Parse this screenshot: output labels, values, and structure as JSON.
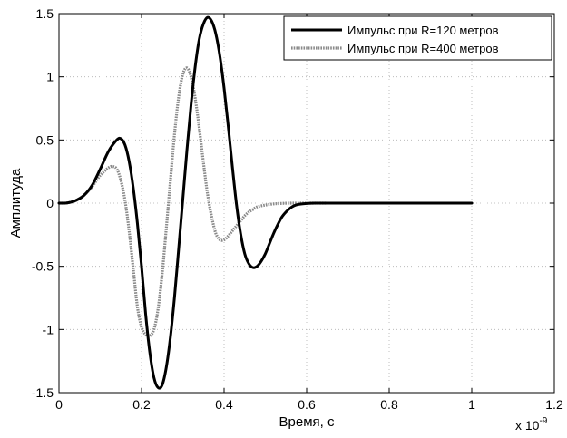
{
  "chart_data": {
    "type": "line",
    "title": "",
    "xlabel": "Время, с",
    "ylabel": "Амплитуда",
    "x_exponent_label": "x 10",
    "x_exponent_power": "-9",
    "xlim": [
      0,
      1.2
    ],
    "ylim": [
      -1.5,
      1.5
    ],
    "xticks": [
      0,
      0.2,
      0.4,
      0.6,
      0.8,
      1,
      1.2
    ],
    "xtick_labels": [
      "0",
      "0.2",
      "0.4",
      "0.6",
      "0.8",
      "1",
      "1.2"
    ],
    "yticks": [
      -1.5,
      -1,
      -0.5,
      0,
      0.5,
      1,
      1.5
    ],
    "ytick_labels": [
      "-1.5",
      "-1",
      "-0.5",
      "0",
      "0.5",
      "1",
      "1.5"
    ],
    "grid": true,
    "legend_position": "top-right",
    "series": [
      {
        "name": "Импульс при R=120 метров",
        "color": "#000000",
        "style": "solid",
        "x": [
          0,
          0.02,
          0.04,
          0.06,
          0.08,
          0.1,
          0.12,
          0.14,
          0.15,
          0.16,
          0.17,
          0.18,
          0.19,
          0.2,
          0.21,
          0.22,
          0.23,
          0.24,
          0.25,
          0.26,
          0.27,
          0.28,
          0.29,
          0.3,
          0.31,
          0.32,
          0.33,
          0.34,
          0.35,
          0.36,
          0.37,
          0.38,
          0.39,
          0.4,
          0.41,
          0.42,
          0.43,
          0.44,
          0.45,
          0.46,
          0.47,
          0.48,
          0.49,
          0.5,
          0.51,
          0.52,
          0.53,
          0.54,
          0.55,
          0.56,
          0.57,
          0.58,
          0.6,
          0.62,
          0.65,
          0.7,
          0.8,
          0.9,
          1.0
        ],
        "y": [
          0,
          0.002,
          0.02,
          0.06,
          0.14,
          0.27,
          0.41,
          0.5,
          0.51,
          0.46,
          0.33,
          0.12,
          -0.16,
          -0.5,
          -0.88,
          -1.18,
          -1.38,
          -1.46,
          -1.44,
          -1.3,
          -1.06,
          -0.74,
          -0.36,
          0.03,
          0.42,
          0.78,
          1.08,
          1.3,
          1.42,
          1.47,
          1.44,
          1.34,
          1.16,
          0.91,
          0.61,
          0.29,
          -0.01,
          -0.24,
          -0.4,
          -0.48,
          -0.51,
          -0.5,
          -0.46,
          -0.4,
          -0.32,
          -0.24,
          -0.17,
          -0.11,
          -0.07,
          -0.04,
          -0.02,
          -0.01,
          -0.003,
          0,
          0,
          0,
          0,
          0,
          0
        ]
      },
      {
        "name": "Импульс при R=400 метров",
        "color": "#8a8a8a",
        "style": "dotted",
        "x": [
          0,
          0.02,
          0.04,
          0.06,
          0.08,
          0.1,
          0.12,
          0.13,
          0.14,
          0.15,
          0.16,
          0.17,
          0.18,
          0.19,
          0.2,
          0.21,
          0.22,
          0.23,
          0.24,
          0.25,
          0.26,
          0.27,
          0.28,
          0.29,
          0.3,
          0.31,
          0.32,
          0.33,
          0.34,
          0.35,
          0.36,
          0.37,
          0.38,
          0.39,
          0.4,
          0.41,
          0.42,
          0.43,
          0.44,
          0.45,
          0.46,
          0.47,
          0.48,
          0.5,
          0.52,
          0.54,
          0.56,
          0.58,
          0.6,
          0.65
        ],
        "y": [
          0,
          0.002,
          0.02,
          0.06,
          0.13,
          0.22,
          0.28,
          0.29,
          0.27,
          0.18,
          0.02,
          -0.22,
          -0.52,
          -0.82,
          -0.98,
          -1.04,
          -1.05,
          -1.0,
          -0.84,
          -0.56,
          -0.2,
          0.18,
          0.55,
          0.84,
          1.02,
          1.07,
          1.0,
          0.83,
          0.59,
          0.32,
          0.07,
          -0.11,
          -0.24,
          -0.29,
          -0.29,
          -0.26,
          -0.22,
          -0.18,
          -0.14,
          -0.1,
          -0.07,
          -0.05,
          -0.03,
          -0.015,
          -0.006,
          -0.002,
          0,
          0,
          0,
          0
        ]
      }
    ]
  }
}
